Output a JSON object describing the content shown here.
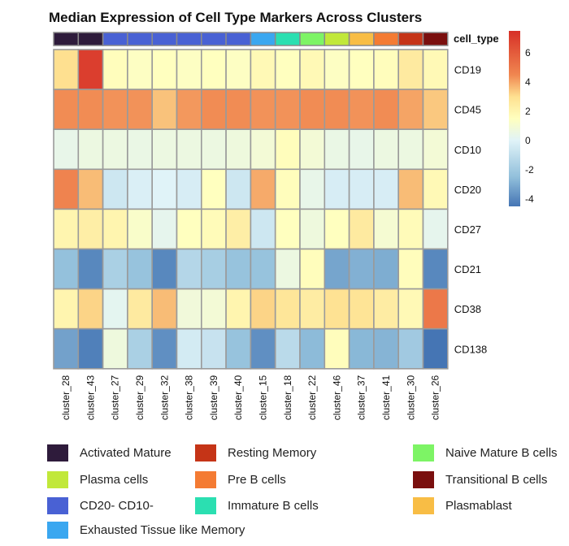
{
  "chart_data": {
    "type": "heatmap",
    "title": "Median Expression of Cell Type Markers Across Clusters",
    "annotation_label": "cell_type",
    "columns": [
      "cluster_28",
      "cluster_43",
      "cluster_27",
      "cluster_29",
      "cluster_32",
      "cluster_38",
      "cluster_39",
      "cluster_40",
      "cluster_15",
      "cluster_18",
      "cluster_22",
      "cluster_46",
      "cluster_37",
      "cluster_41",
      "cluster_30",
      "cluster_26"
    ],
    "column_cell_types": [
      "Activated Mature",
      "Activated Mature",
      "CD20- CD10-",
      "CD20- CD10-",
      "CD20- CD10-",
      "CD20- CD10-",
      "CD20- CD10-",
      "CD20- CD10-",
      "Exhausted Tissue like Memory",
      "Immature B cells",
      "Naive Mature B cells",
      "Plasma cells",
      "Plasmablast",
      "Pre B cells",
      "Resting Memory",
      "Transitional B cells"
    ],
    "rows": [
      "CD19",
      "CD45",
      "CD10",
      "CD20",
      "CD27",
      "CD21",
      "CD38",
      "CD138"
    ],
    "values": [
      [
        3.0,
        7.0,
        1.6,
        1.4,
        1.5,
        1.4,
        1.5,
        1.4,
        1.8,
        1.5,
        1.8,
        1.4,
        1.5,
        1.6,
        2.5,
        1.8
      ],
      [
        4.4,
        4.4,
        4.3,
        4.3,
        3.5,
        4.2,
        4.4,
        4.4,
        4.3,
        4.3,
        4.4,
        4.4,
        4.3,
        4.4,
        4.0,
        3.4
      ],
      [
        0.4,
        0.6,
        0.6,
        0.5,
        0.6,
        0.6,
        0.6,
        0.7,
        0.9,
        1.6,
        0.9,
        0.5,
        0.4,
        0.6,
        0.6,
        0.9
      ],
      [
        4.6,
        3.6,
        -0.6,
        -0.2,
        0.0,
        -0.3,
        1.5,
        -0.6,
        3.9,
        1.6,
        0.4,
        -0.3,
        -0.3,
        -0.3,
        3.6,
        1.8
      ],
      [
        2.0,
        2.3,
        2.0,
        1.2,
        0.3,
        1.5,
        1.7,
        2.3,
        -0.6,
        1.5,
        0.7,
        1.5,
        2.5,
        1.0,
        1.7,
        0.3
      ],
      [
        -2.4,
        -4.0,
        -1.7,
        -2.3,
        -4.0,
        -1.4,
        -1.8,
        -2.3,
        -2.3,
        0.6,
        1.6,
        -3.2,
        -2.9,
        -3.0,
        1.6,
        -4.0
      ],
      [
        2.0,
        3.2,
        0.2,
        2.5,
        3.6,
        0.8,
        0.9,
        2.0,
        3.2,
        2.7,
        2.4,
        2.9,
        2.8,
        2.4,
        1.8,
        5.0
      ],
      [
        -3.3,
        -4.2,
        0.7,
        -1.7,
        -3.8,
        -0.4,
        -0.8,
        -2.3,
        -3.8,
        -1.2,
        -2.6,
        1.6,
        -2.7,
        -2.8,
        -2.0,
        -4.5
      ]
    ],
    "color_scale": {
      "min": -4.5,
      "max": 7.5,
      "ticks": [
        6,
        4,
        2,
        0,
        -2,
        -4
      ],
      "stops": [
        {
          "v": -4.5,
          "c": "#4575b4"
        },
        {
          "v": -2.5,
          "c": "#91bfdb"
        },
        {
          "v": 0,
          "c": "#e0f3f8"
        },
        {
          "v": 1.5,
          "c": "#ffffbf"
        },
        {
          "v": 3,
          "c": "#fee090"
        },
        {
          "v": 4.5,
          "c": "#f08650"
        },
        {
          "v": 7.5,
          "c": "#d73027"
        }
      ]
    },
    "legend": [
      {
        "label": "Activated Mature",
        "color": "#2e1b3b"
      },
      {
        "label": "Resting Memory",
        "color": "#c53417"
      },
      {
        "label": "Naive Mature B cells",
        "color": "#7df465"
      },
      {
        "label": "Plasma cells",
        "color": "#c1e83a"
      },
      {
        "label": "Pre B cells",
        "color": "#f47b33"
      },
      {
        "label": "Transitional B cells",
        "color": "#7a0f0e"
      },
      {
        "label": "CD20- CD10-",
        "color": "#4961d4"
      },
      {
        "label": "Immature B cells",
        "color": "#2bdfb1"
      },
      {
        "label": "Plasmablast",
        "color": "#f8bd45"
      },
      {
        "label": "Exhausted Tissue like Memory",
        "color": "#3aa7f0"
      }
    ]
  }
}
